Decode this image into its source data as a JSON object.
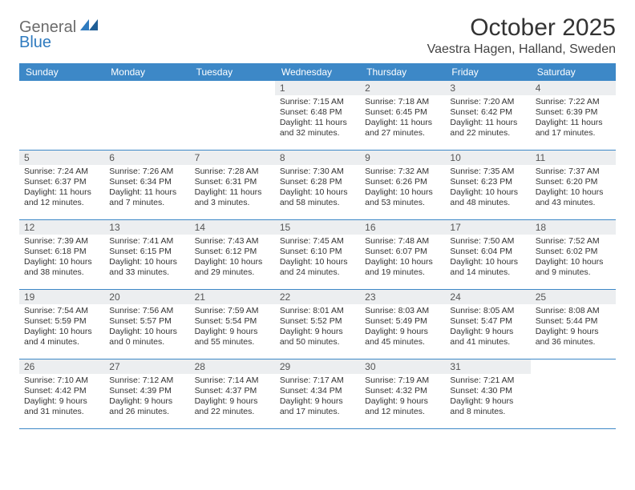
{
  "brand": {
    "general": "General",
    "blue": "Blue"
  },
  "title": "October 2025",
  "location": "Vaestra Hagen, Halland, Sweden",
  "colors": {
    "header_bg": "#3d88c7",
    "header_fg": "#ffffff",
    "daynum_bg": "#eceef0",
    "rule": "#3d88c7",
    "logo_blue": "#2f7bbf",
    "logo_gray": "#6b6b6b"
  },
  "daysOfWeek": [
    "Sunday",
    "Monday",
    "Tuesday",
    "Wednesday",
    "Thursday",
    "Friday",
    "Saturday"
  ],
  "weeks": [
    [
      {
        "n": "",
        "sr": "",
        "ss": "",
        "dl": ""
      },
      {
        "n": "",
        "sr": "",
        "ss": "",
        "dl": ""
      },
      {
        "n": "",
        "sr": "",
        "ss": "",
        "dl": ""
      },
      {
        "n": "1",
        "sr": "Sunrise: 7:15 AM",
        "ss": "Sunset: 6:48 PM",
        "dl": "Daylight: 11 hours and 32 minutes."
      },
      {
        "n": "2",
        "sr": "Sunrise: 7:18 AM",
        "ss": "Sunset: 6:45 PM",
        "dl": "Daylight: 11 hours and 27 minutes."
      },
      {
        "n": "3",
        "sr": "Sunrise: 7:20 AM",
        "ss": "Sunset: 6:42 PM",
        "dl": "Daylight: 11 hours and 22 minutes."
      },
      {
        "n": "4",
        "sr": "Sunrise: 7:22 AM",
        "ss": "Sunset: 6:39 PM",
        "dl": "Daylight: 11 hours and 17 minutes."
      }
    ],
    [
      {
        "n": "5",
        "sr": "Sunrise: 7:24 AM",
        "ss": "Sunset: 6:37 PM",
        "dl": "Daylight: 11 hours and 12 minutes."
      },
      {
        "n": "6",
        "sr": "Sunrise: 7:26 AM",
        "ss": "Sunset: 6:34 PM",
        "dl": "Daylight: 11 hours and 7 minutes."
      },
      {
        "n": "7",
        "sr": "Sunrise: 7:28 AM",
        "ss": "Sunset: 6:31 PM",
        "dl": "Daylight: 11 hours and 3 minutes."
      },
      {
        "n": "8",
        "sr": "Sunrise: 7:30 AM",
        "ss": "Sunset: 6:28 PM",
        "dl": "Daylight: 10 hours and 58 minutes."
      },
      {
        "n": "9",
        "sr": "Sunrise: 7:32 AM",
        "ss": "Sunset: 6:26 PM",
        "dl": "Daylight: 10 hours and 53 minutes."
      },
      {
        "n": "10",
        "sr": "Sunrise: 7:35 AM",
        "ss": "Sunset: 6:23 PM",
        "dl": "Daylight: 10 hours and 48 minutes."
      },
      {
        "n": "11",
        "sr": "Sunrise: 7:37 AM",
        "ss": "Sunset: 6:20 PM",
        "dl": "Daylight: 10 hours and 43 minutes."
      }
    ],
    [
      {
        "n": "12",
        "sr": "Sunrise: 7:39 AM",
        "ss": "Sunset: 6:18 PM",
        "dl": "Daylight: 10 hours and 38 minutes."
      },
      {
        "n": "13",
        "sr": "Sunrise: 7:41 AM",
        "ss": "Sunset: 6:15 PM",
        "dl": "Daylight: 10 hours and 33 minutes."
      },
      {
        "n": "14",
        "sr": "Sunrise: 7:43 AM",
        "ss": "Sunset: 6:12 PM",
        "dl": "Daylight: 10 hours and 29 minutes."
      },
      {
        "n": "15",
        "sr": "Sunrise: 7:45 AM",
        "ss": "Sunset: 6:10 PM",
        "dl": "Daylight: 10 hours and 24 minutes."
      },
      {
        "n": "16",
        "sr": "Sunrise: 7:48 AM",
        "ss": "Sunset: 6:07 PM",
        "dl": "Daylight: 10 hours and 19 minutes."
      },
      {
        "n": "17",
        "sr": "Sunrise: 7:50 AM",
        "ss": "Sunset: 6:04 PM",
        "dl": "Daylight: 10 hours and 14 minutes."
      },
      {
        "n": "18",
        "sr": "Sunrise: 7:52 AM",
        "ss": "Sunset: 6:02 PM",
        "dl": "Daylight: 10 hours and 9 minutes."
      }
    ],
    [
      {
        "n": "19",
        "sr": "Sunrise: 7:54 AM",
        "ss": "Sunset: 5:59 PM",
        "dl": "Daylight: 10 hours and 4 minutes."
      },
      {
        "n": "20",
        "sr": "Sunrise: 7:56 AM",
        "ss": "Sunset: 5:57 PM",
        "dl": "Daylight: 10 hours and 0 minutes."
      },
      {
        "n": "21",
        "sr": "Sunrise: 7:59 AM",
        "ss": "Sunset: 5:54 PM",
        "dl": "Daylight: 9 hours and 55 minutes."
      },
      {
        "n": "22",
        "sr": "Sunrise: 8:01 AM",
        "ss": "Sunset: 5:52 PM",
        "dl": "Daylight: 9 hours and 50 minutes."
      },
      {
        "n": "23",
        "sr": "Sunrise: 8:03 AM",
        "ss": "Sunset: 5:49 PM",
        "dl": "Daylight: 9 hours and 45 minutes."
      },
      {
        "n": "24",
        "sr": "Sunrise: 8:05 AM",
        "ss": "Sunset: 5:47 PM",
        "dl": "Daylight: 9 hours and 41 minutes."
      },
      {
        "n": "25",
        "sr": "Sunrise: 8:08 AM",
        "ss": "Sunset: 5:44 PM",
        "dl": "Daylight: 9 hours and 36 minutes."
      }
    ],
    [
      {
        "n": "26",
        "sr": "Sunrise: 7:10 AM",
        "ss": "Sunset: 4:42 PM",
        "dl": "Daylight: 9 hours and 31 minutes."
      },
      {
        "n": "27",
        "sr": "Sunrise: 7:12 AM",
        "ss": "Sunset: 4:39 PM",
        "dl": "Daylight: 9 hours and 26 minutes."
      },
      {
        "n": "28",
        "sr": "Sunrise: 7:14 AM",
        "ss": "Sunset: 4:37 PM",
        "dl": "Daylight: 9 hours and 22 minutes."
      },
      {
        "n": "29",
        "sr": "Sunrise: 7:17 AM",
        "ss": "Sunset: 4:34 PM",
        "dl": "Daylight: 9 hours and 17 minutes."
      },
      {
        "n": "30",
        "sr": "Sunrise: 7:19 AM",
        "ss": "Sunset: 4:32 PM",
        "dl": "Daylight: 9 hours and 12 minutes."
      },
      {
        "n": "31",
        "sr": "Sunrise: 7:21 AM",
        "ss": "Sunset: 4:30 PM",
        "dl": "Daylight: 9 hours and 8 minutes."
      },
      {
        "n": "",
        "sr": "",
        "ss": "",
        "dl": ""
      }
    ]
  ]
}
